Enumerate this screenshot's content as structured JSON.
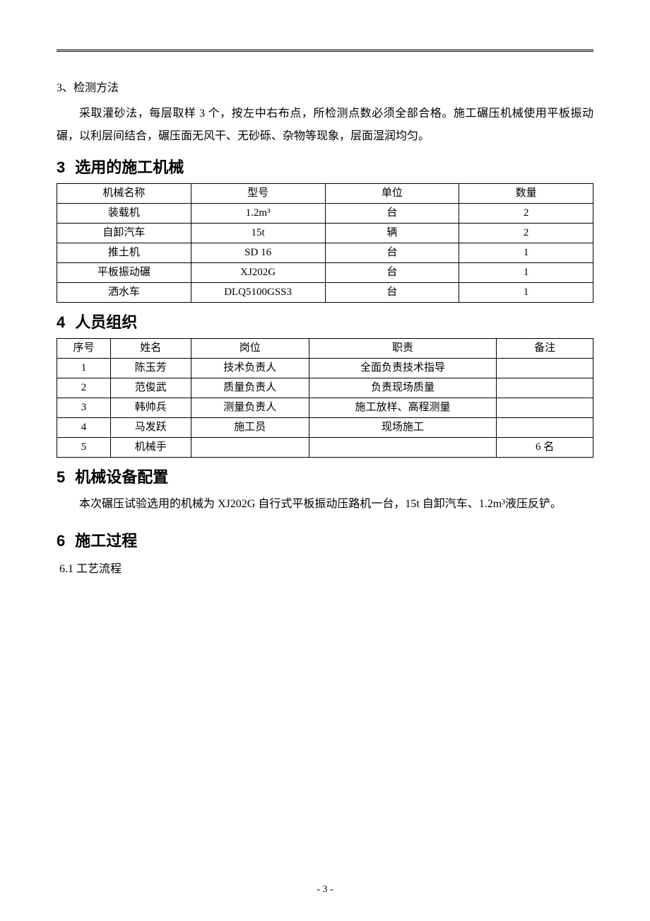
{
  "section0": {
    "subhead": "3、检测方法",
    "paragraph": "采取灌砂法，每层取样 3 个，按左中右布点，所检测点数必须全部合格。施工碾压机械使用平板振动碾，以利层间结合，碾压面无风干、无砂砾、杂物等现象，层面湿润均匀。"
  },
  "section3": {
    "num": "3",
    "title": "选用的施工机械",
    "table": {
      "headers": [
        "机械名称",
        "型号",
        "单位",
        "数量"
      ],
      "rows": [
        [
          "装载机",
          "1.2m³",
          "台",
          "2"
        ],
        [
          "自卸汽车",
          "15t",
          "辆",
          "2"
        ],
        [
          "推土机",
          "SD 16",
          "台",
          "1"
        ],
        [
          "平板振动碾",
          "XJ202G",
          "台",
          "1"
        ],
        [
          "洒水车",
          "DLQ5100GSS3",
          "台",
          "1"
        ]
      ],
      "col_widths": [
        "25%",
        "25%",
        "25%",
        "25%"
      ]
    }
  },
  "section4": {
    "num": "4",
    "title": "人员组织",
    "table": {
      "headers": [
        "序号",
        "姓名",
        "岗位",
        "职责",
        "备注"
      ],
      "rows": [
        [
          "1",
          "陈玉芳",
          "技术负责人",
          "全面负责技术指导",
          ""
        ],
        [
          "2",
          "范俊武",
          "质量负责人",
          "负责现场质量",
          ""
        ],
        [
          "3",
          "韩帅兵",
          "测量负责人",
          "施工放样、高程测量",
          ""
        ],
        [
          "4",
          "马发跃",
          "施工员",
          "现场施工",
          ""
        ],
        [
          "5",
          "机械手",
          "",
          "",
          "6 名"
        ]
      ],
      "col_widths": [
        "10%",
        "15%",
        "22%",
        "35%",
        "18%"
      ]
    }
  },
  "section5": {
    "num": "5",
    "title": "机械设备配置",
    "paragraph": "本次碾压试验选用的机械为 XJ202G 自行式平板振动压路机一台，15t 自卸汽车、1.2m³液压反铲。"
  },
  "section6": {
    "num": "6",
    "title": "施工过程",
    "sub": "6.1 工艺流程"
  },
  "footer": "- 3 -"
}
